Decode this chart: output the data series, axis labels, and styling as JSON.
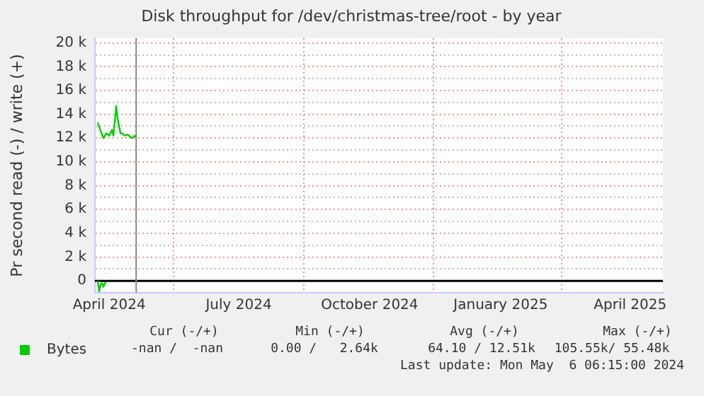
{
  "chart_data": {
    "type": "line",
    "title": "Disk throughput for /dev/christmas-tree/root - by year",
    "ylabel": "Pr second read (-) / write (+)",
    "x": [
      "2024-04-09",
      "2024-04-11",
      "2024-04-13",
      "2024-04-15",
      "2024-04-17",
      "2024-04-19",
      "2024-04-20",
      "2024-04-22",
      "2024-04-23",
      "2024-04-25",
      "2024-04-26",
      "2024-04-28",
      "2024-04-30",
      "2024-05-03",
      "2024-05-05",
      "2024-05-06"
    ],
    "series": [
      {
        "name": "Bytes",
        "color": "#00cc00",
        "values": [
          13300,
          12600,
          12000,
          12400,
          12200,
          12700,
          12200,
          14700,
          13600,
          12400,
          12400,
          12200,
          12300,
          12000,
          12200,
          12100
        ]
      },
      {
        "color": "#00cc00",
        "x": [
          "2024-04-09",
          "2024-04-10",
          "2024-04-11",
          "2024-04-12",
          "2024-04-13",
          "2024-04-14",
          "2024-04-15"
        ],
        "values": [
          0,
          -900,
          -300,
          -200,
          -500,
          -200,
          -100
        ]
      }
    ],
    "xlim": [
      "2024-04-07",
      "2025-05-11"
    ],
    "xticks": [
      {
        "value": "2024-04-17",
        "label": "April 2024"
      },
      {
        "value": "2024-06-01",
        "label": null
      },
      {
        "value": "2024-07-17",
        "label": "July 2024"
      },
      {
        "value": "2024-09-01",
        "label": null
      },
      {
        "value": "2024-10-17",
        "label": "October 2024"
      },
      {
        "value": "2024-12-01",
        "label": null
      },
      {
        "value": "2025-01-17",
        "label": "January 2025"
      },
      {
        "value": "2025-03-01",
        "label": null
      },
      {
        "value": "2025-04-18",
        "label": "April 2025"
      }
    ],
    "ylim": [
      -1000,
      20400
    ],
    "yticks": [
      {
        "value": 0,
        "label": "0"
      },
      {
        "value": 1000,
        "label": null
      },
      {
        "value": 2000,
        "label": "2 k"
      },
      {
        "value": 3000,
        "label": null
      },
      {
        "value": 4000,
        "label": "4 k"
      },
      {
        "value": 5000,
        "label": null
      },
      {
        "value": 6000,
        "label": "6 k"
      },
      {
        "value": 7000,
        "label": null
      },
      {
        "value": 8000,
        "label": "8 k"
      },
      {
        "value": 9000,
        "label": null
      },
      {
        "value": 10000,
        "label": "10 k"
      },
      {
        "value": 11000,
        "label": null
      },
      {
        "value": 12000,
        "label": "12 k"
      },
      {
        "value": 13000,
        "label": null
      },
      {
        "value": 14000,
        "label": "14 k"
      },
      {
        "value": 15000,
        "label": null
      },
      {
        "value": 16000,
        "label": "16 k"
      },
      {
        "value": 17000,
        "label": null
      },
      {
        "value": 18000,
        "label": "18 k"
      },
      {
        "value": 19000,
        "label": null
      },
      {
        "value": 20000,
        "label": "20 k"
      }
    ],
    "ref_lines": [
      {
        "axis": "y",
        "value": 0,
        "color": "#000000"
      },
      {
        "axis": "x",
        "value": "2024-05-06",
        "color": "#888888"
      }
    ],
    "grid": true,
    "legend": "bottom",
    "marker": "none",
    "line_style": "solid",
    "annotations": [
      "Cur (-/+)",
      "Min (-/+)",
      "Avg (-/+)",
      "Max (-/+)",
      "-nan /  -nan",
      "0.00 /   2.64k",
      "64.10 / 12.51k",
      "105.55k/ 55.48k",
      "Last update: Mon May  6 06:15:00 2024"
    ]
  }
}
